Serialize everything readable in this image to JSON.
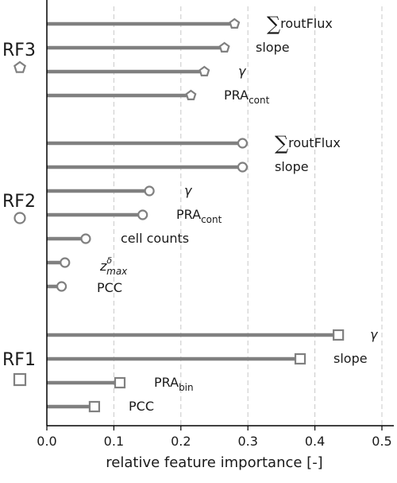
{
  "chart_data": {
    "type": "lollipop",
    "orientation": "horizontal",
    "xlabel": "relative feature importance [-]",
    "xlim": [
      0,
      0.5
    ],
    "xticks": [
      0.0,
      0.1,
      0.2,
      0.3,
      0.4,
      0.5
    ],
    "xtick_labels": [
      "0.0",
      "0.1",
      "0.2",
      "0.3",
      "0.4",
      "0.5"
    ],
    "grid": "vertical-dashed",
    "bar_color": "#808080",
    "groups": [
      {
        "name": "RF3",
        "marker": "pentagon",
        "items": [
          {
            "feature": {
              "sym": "∑",
              "main": "routFlux",
              "sub": ""
            },
            "value": 0.28
          },
          {
            "feature": {
              "sym": "",
              "main": "slope",
              "sub": ""
            },
            "value": 0.265
          },
          {
            "feature": {
              "sym": "",
              "main": "γ",
              "sub": "",
              "italic": true
            },
            "value": 0.235
          },
          {
            "feature": {
              "sym": "",
              "main": "PRA",
              "sub": "cont"
            },
            "value": 0.215
          }
        ]
      },
      {
        "name": "RF2",
        "marker": "circle",
        "items": [
          {
            "feature": {
              "sym": "∑",
              "main": "routFlux",
              "sub": ""
            },
            "value": 0.292
          },
          {
            "feature": {
              "sym": "",
              "main": "slope",
              "sub": ""
            },
            "value": 0.292
          },
          {
            "feature": {
              "sym": "",
              "main": "γ",
              "sub": "",
              "italic": true
            },
            "value": 0.153
          },
          {
            "feature": {
              "sym": "",
              "main": "PRA",
              "sub": "cont"
            },
            "value": 0.143
          },
          {
            "feature": {
              "sym": "",
              "main": "cell counts",
              "sub": ""
            },
            "value": 0.058
          },
          {
            "feature": {
              "sym": "",
              "main": "z",
              "sup": "δ",
              "sub": "max",
              "italic": true
            },
            "value": 0.027
          },
          {
            "feature": {
              "sym": "",
              "main": "PCC",
              "sub": ""
            },
            "value": 0.022
          }
        ]
      },
      {
        "name": "RF1",
        "marker": "square",
        "items": [
          {
            "feature": {
              "sym": "",
              "main": "γ",
              "sub": "",
              "italic": true
            },
            "value": 0.435
          },
          {
            "feature": {
              "sym": "",
              "main": "slope",
              "sub": ""
            },
            "value": 0.378
          },
          {
            "feature": {
              "sym": "",
              "main": "PRA",
              "sub": "bin"
            },
            "value": 0.109
          },
          {
            "feature": {
              "sym": "",
              "main": "PCC",
              "sub": ""
            },
            "value": 0.071
          }
        ]
      }
    ]
  }
}
